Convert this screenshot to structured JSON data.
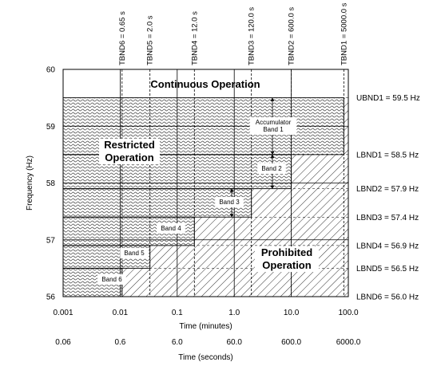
{
  "chart_data": {
    "type": "region-plot",
    "xlabel": "Time (minutes)",
    "xlabel_secondary": "Time (seconds)",
    "ylabel": "Frequency (Hz)",
    "x_scale": "log",
    "xlim": [
      0.001,
      100.0
    ],
    "ylim": [
      56,
      60
    ],
    "x_ticks": [
      {
        "value": 0.001,
        "label": "0.001"
      },
      {
        "value": 0.01,
        "label": "0.01"
      },
      {
        "value": 0.1,
        "label": "0.1"
      },
      {
        "value": 1.0,
        "label": "1.0"
      },
      {
        "value": 10.0,
        "label": "10.0"
      },
      {
        "value": 100.0,
        "label": "100.0"
      }
    ],
    "x_ticks_seconds": [
      {
        "value": 0.001,
        "label": "0.06"
      },
      {
        "value": 0.01,
        "label": "0.6"
      },
      {
        "value": 0.1,
        "label": "6.0"
      },
      {
        "value": 1.0,
        "label": "60.0"
      },
      {
        "value": 10.0,
        "label": "600.0"
      },
      {
        "value": 100.0,
        "label": "6000.0"
      }
    ],
    "y_ticks": [
      {
        "value": 56,
        "label": "56"
      },
      {
        "value": 57,
        "label": "57"
      },
      {
        "value": 58,
        "label": "58"
      },
      {
        "value": 59,
        "label": "59"
      },
      {
        "value": 60,
        "label": "60"
      }
    ],
    "vertical_lines": [
      {
        "name": "tbnd6",
        "label": "TBND6 = 0.65 s",
        "x": 0.0108
      },
      {
        "name": "tbnd5",
        "label": "TBND5 = 2.0 s",
        "x": 0.0333
      },
      {
        "name": "tbnd4",
        "label": "TBND4 = 12.0 s",
        "x": 0.2
      },
      {
        "name": "tbnd3",
        "label": "TBND3 = 120.0 s",
        "x": 2.0
      },
      {
        "name": "tbnd2",
        "label": "TBND2 = 600.0 s",
        "x": 10.0
      },
      {
        "name": "tbnd1",
        "label": "TBND1 = 5000.0 s",
        "x": 83.3
      }
    ],
    "freq_bounds": [
      {
        "name": "ubnd1",
        "label": "UBND1 = 59.5 Hz",
        "y": 59.5
      },
      {
        "name": "lbnd1",
        "label": "LBND1 = 58.5 Hz",
        "y": 58.5
      },
      {
        "name": "lbnd2",
        "label": "LBND2 = 57.9 Hz",
        "y": 57.9
      },
      {
        "name": "lbnd3",
        "label": "LBND3 = 57.4 Hz",
        "y": 57.4
      },
      {
        "name": "lbnd4",
        "label": "LBND4 = 56.9 Hz",
        "y": 56.9
      },
      {
        "name": "lbnd5",
        "label": "LBND5 = 56.5 Hz",
        "y": 56.5
      },
      {
        "name": "lbnd6",
        "label": "LBND6 = 56.0 Hz",
        "y": 56.0
      }
    ],
    "regions": {
      "continuous": "Continuous Operation",
      "restricted": [
        "Restricted",
        "Operation"
      ],
      "prohibited": [
        "Prohibited",
        "Operation"
      ]
    },
    "bands": [
      {
        "name": "band1",
        "label": [
          "Accumulator",
          "Band 1"
        ],
        "x_start": 0.001,
        "x_end": 83.3,
        "y_low": 58.5,
        "y_high": 59.5
      },
      {
        "name": "band2",
        "label": [
          "Band 2"
        ],
        "x_start": 0.001,
        "x_end": 10.0,
        "y_low": 57.9,
        "y_high": 58.5
      },
      {
        "name": "band3",
        "label": [
          "Band 3"
        ],
        "x_start": 0.001,
        "x_end": 2.0,
        "y_low": 57.4,
        "y_high": 57.9
      },
      {
        "name": "band4",
        "label": [
          "Band 4"
        ],
        "x_start": 0.001,
        "x_end": 0.2,
        "y_low": 56.9,
        "y_high": 57.4
      },
      {
        "name": "band5",
        "label": [
          "Band 5"
        ],
        "x_start": 0.001,
        "x_end": 0.0333,
        "y_low": 56.5,
        "y_high": 56.9
      },
      {
        "name": "band6",
        "label": [
          "Band 6"
        ],
        "x_start": 0.001,
        "x_end": 0.0108,
        "y_low": 56.0,
        "y_high": 56.5
      }
    ]
  }
}
